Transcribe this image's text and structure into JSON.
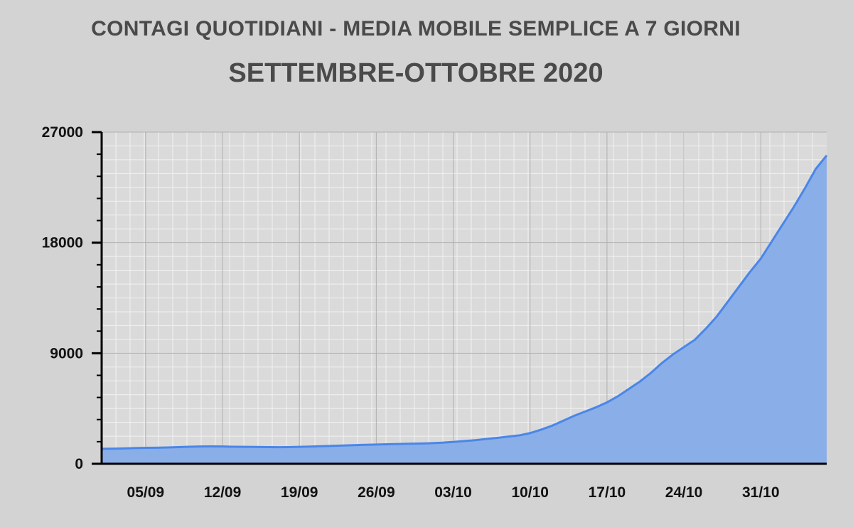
{
  "chart_data": {
    "type": "area",
    "title": "CONTAGI QUOTIDIANI - MEDIA MOBILE SEMPLICE A 7 GIORNI",
    "subtitle": "SETTEMBRE-OTTOBRE 2020",
    "xlabel": "",
    "ylabel": "",
    "ylim": [
      0,
      27000
    ],
    "yticks": [
      "0",
      "9000",
      "18000",
      "27000"
    ],
    "xticks": [
      "05/09",
      "12/09",
      "19/09",
      "26/09",
      "03/10",
      "10/10",
      "17/10",
      "24/10",
      "31/10"
    ],
    "grid": true,
    "legend": "none",
    "colors": {
      "line": "#4a86e8",
      "fill": "#8aaee8",
      "background": "#d3d3d3",
      "plot_background": "#d9d9d9"
    },
    "series": [
      {
        "values": [
          1220,
          1230,
          1250,
          1280,
          1300,
          1310,
          1330,
          1360,
          1390,
          1410,
          1420,
          1410,
          1390,
          1380,
          1370,
          1360,
          1350,
          1360,
          1380,
          1400,
          1430,
          1460,
          1490,
          1520,
          1550,
          1570,
          1590,
          1610,
          1630,
          1650,
          1680,
          1720,
          1780,
          1850,
          1920,
          2020,
          2110,
          2210,
          2310,
          2500,
          2780,
          3100,
          3500,
          3900,
          4250,
          4600,
          5000,
          5500,
          6100,
          6700,
          7400,
          8200,
          8900,
          9500,
          10100,
          11000,
          12000,
          13200,
          14400,
          15600,
          16700,
          18100,
          19500,
          20900,
          22400,
          24000,
          25100
        ]
      }
    ]
  }
}
